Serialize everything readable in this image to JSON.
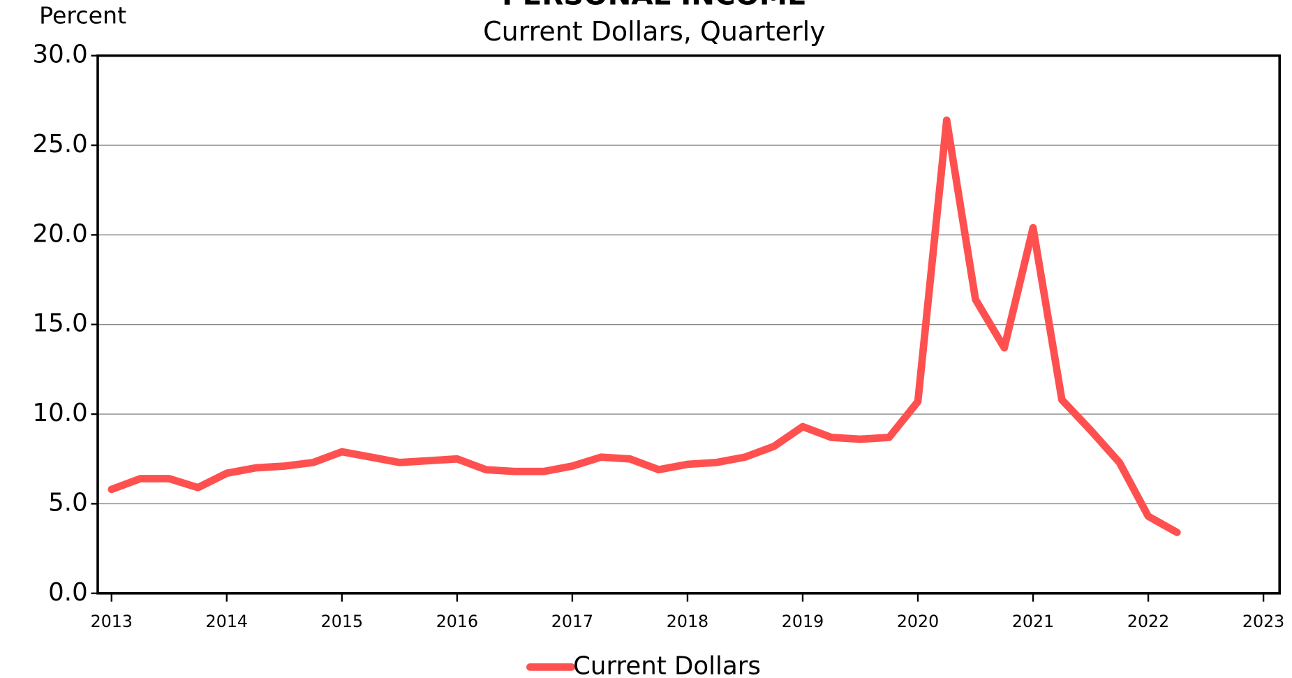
{
  "chart_data": {
    "type": "line",
    "title": "PERSONAL INCOME",
    "subtitle": "Current Dollars, Quarterly",
    "y_label": "Percent",
    "x": [
      2013,
      2013.25,
      2013.5,
      2013.75,
      2014,
      2014.25,
      2014.5,
      2014.75,
      2015,
      2015.25,
      2015.5,
      2015.75,
      2016,
      2016.25,
      2016.5,
      2016.75,
      2017,
      2017.25,
      2017.5,
      2017.75,
      2018,
      2018.25,
      2018.5,
      2018.75,
      2019,
      2019.25,
      2019.5,
      2019.75,
      2020,
      2020.25,
      2020.5,
      2020.75,
      2021,
      2021.25,
      2021.5,
      2021.75,
      2022,
      2022.25
    ],
    "series": [
      {
        "name": "Current Dollars",
        "color": "#ff5050",
        "values": [
          5.8,
          6.4,
          6.4,
          5.9,
          6.7,
          7.0,
          7.1,
          7.3,
          7.9,
          7.6,
          7.3,
          7.4,
          7.5,
          6.9,
          6.8,
          6.8,
          7.1,
          7.6,
          7.5,
          6.9,
          7.2,
          7.3,
          7.6,
          8.2,
          9.3,
          8.7,
          8.6,
          8.7,
          10.7,
          26.4,
          16.4,
          13.7,
          20.4,
          10.8,
          9.1,
          7.3,
          4.3,
          3.4
        ]
      }
    ],
    "xlim": [
      2012.88,
      2023.14
    ],
    "xticks": [
      2013,
      2014,
      2015,
      2016,
      2017,
      2018,
      2019,
      2020,
      2021,
      2022,
      2023
    ],
    "ylim": [
      0,
      30
    ],
    "yticks": [
      {
        "value": 0,
        "label": "0.0"
      },
      {
        "value": 5,
        "label": "5.0"
      },
      {
        "value": 10,
        "label": "10.0"
      },
      {
        "value": 15,
        "label": "15.0"
      },
      {
        "value": 20,
        "label": "20.0"
      },
      {
        "value": 25,
        "label": "25.0"
      },
      {
        "value": 30,
        "label": "30.0"
      }
    ],
    "grid": true,
    "legend": "bottom"
  }
}
